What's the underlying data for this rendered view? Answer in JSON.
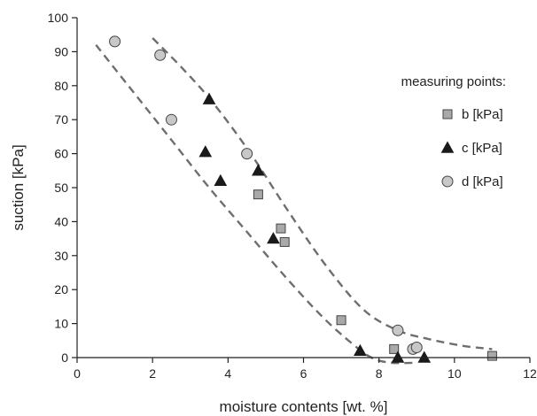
{
  "chart_data": {
    "type": "scatter",
    "xlabel": "moisture contents [wt. %]",
    "ylabel": "suction [kPa]",
    "xlim": [
      0,
      12
    ],
    "ylim": [
      0,
      100
    ],
    "xticks": [
      0,
      2,
      4,
      6,
      8,
      10,
      12
    ],
    "yticks": [
      0,
      10,
      20,
      30,
      40,
      50,
      60,
      70,
      80,
      90,
      100
    ],
    "legend": {
      "title": "measuring points:",
      "placement": "right"
    },
    "series": [
      {
        "name": "b [kPa]",
        "marker": "square",
        "color": "#a9a9a9",
        "points": [
          [
            4.8,
            48
          ],
          [
            5.4,
            38
          ],
          [
            5.5,
            34
          ],
          [
            7.0,
            11
          ],
          [
            8.4,
            2.5
          ],
          [
            11.0,
            0.5
          ]
        ]
      },
      {
        "name": "c [kPa]",
        "marker": "triangle",
        "color": "#1a1a1a",
        "points": [
          [
            3.5,
            76
          ],
          [
            3.4,
            60.5
          ],
          [
            3.8,
            52
          ],
          [
            4.8,
            55
          ],
          [
            5.2,
            35
          ],
          [
            7.5,
            2
          ],
          [
            8.5,
            0
          ],
          [
            9.2,
            0
          ]
        ]
      },
      {
        "name": "d [kPa]",
        "marker": "circle",
        "color": "#c8c8c8",
        "points": [
          [
            1.0,
            93
          ],
          [
            2.2,
            89
          ],
          [
            2.5,
            70
          ],
          [
            4.5,
            60
          ],
          [
            8.5,
            8
          ],
          [
            8.9,
            2.5
          ],
          [
            9.0,
            3
          ]
        ]
      }
    ],
    "bounds": [
      {
        "name": "",
        "style": "dashed",
        "color": "#6e6e6e",
        "points": [
          [
            0.5,
            92
          ],
          [
            1.5,
            78
          ],
          [
            2.5,
            64
          ],
          [
            3.5,
            50
          ],
          [
            4.5,
            37
          ],
          [
            5.5,
            24
          ],
          [
            6.5,
            12
          ],
          [
            7.3,
            4
          ],
          [
            7.8,
            0
          ],
          [
            8.3,
            -1.5
          ],
          [
            9.0,
            -1.5
          ]
        ]
      },
      {
        "name": "",
        "style": "dashed",
        "color": "#6e6e6e",
        "points": [
          [
            2.0,
            94
          ],
          [
            2.8,
            85
          ],
          [
            3.6,
            75
          ],
          [
            4.6,
            60
          ],
          [
            5.6,
            43
          ],
          [
            6.6,
            27
          ],
          [
            7.6,
            14
          ],
          [
            8.5,
            8
          ],
          [
            9.3,
            5.5
          ],
          [
            10.2,
            3.5
          ],
          [
            11.0,
            2.5
          ]
        ]
      }
    ]
  }
}
